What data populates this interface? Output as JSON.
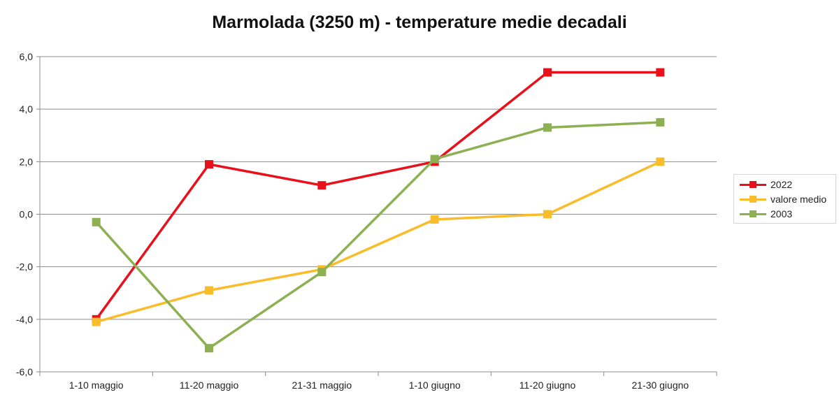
{
  "chart_data": {
    "type": "line",
    "title": "Marmolada (3250 m) - temperature medie decadali",
    "categories": [
      "1-10 maggio",
      "11-20 maggio",
      "21-31 maggio",
      "1-10 giugno",
      "11-20 giugno",
      "21-30 giugno"
    ],
    "series": [
      {
        "name": "2022",
        "color": "#e8101b",
        "values": [
          -4.0,
          1.9,
          1.1,
          2.0,
          5.4,
          5.4
        ]
      },
      {
        "name": "valore medio",
        "color": "#f9bd2b",
        "values": [
          -4.1,
          -2.9,
          -2.1,
          -0.2,
          0.0,
          2.0
        ]
      },
      {
        "name": "2003",
        "color": "#8cb052",
        "values": [
          -0.3,
          -5.1,
          -2.2,
          2.1,
          3.3,
          3.5
        ]
      }
    ],
    "yticks": [
      "6,0",
      "4,0",
      "2,0",
      "0,0",
      "-2,0",
      "-4,0",
      "-6,0"
    ],
    "ylim": [
      -6,
      6
    ],
    "xlabel": "",
    "ylabel": "",
    "grid": true,
    "legend_position": "right",
    "marker": "square"
  }
}
